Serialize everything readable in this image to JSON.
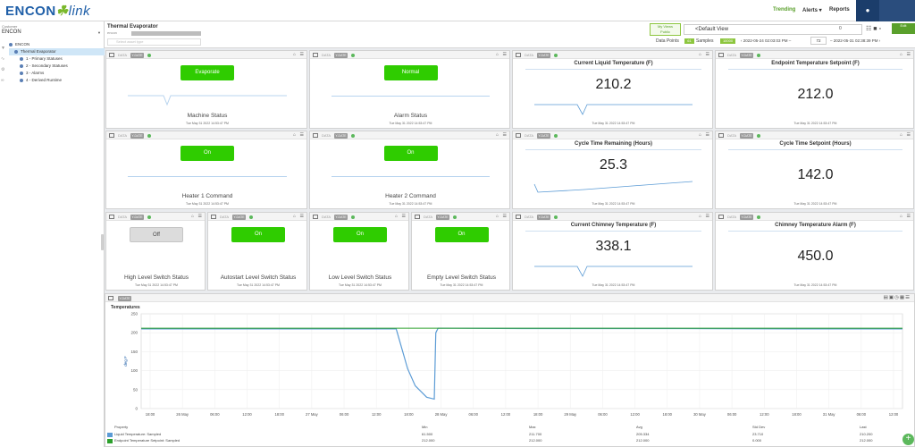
{
  "app": {
    "logo_main": "ENCON",
    "logo_leaf": "☘",
    "logo_link": "link"
  },
  "topnav": {
    "trending": "Trending",
    "alerts": "Alerts ▾",
    "reports": "Reports"
  },
  "sidebar": {
    "customer_label": "Customer",
    "customer_value": "ENCON",
    "tree": [
      {
        "label": "ENCON",
        "indent": 0,
        "selected": false
      },
      {
        "label": "Thermal Evaporator",
        "indent": 1,
        "selected": true
      },
      {
        "label": "1 - Primary Statuses",
        "indent": 2,
        "selected": false
      },
      {
        "label": "2 - Secondary Statuses",
        "indent": 2,
        "selected": false
      },
      {
        "label": "3 - Alarms",
        "indent": 2,
        "selected": false
      },
      {
        "label": "4 - Derived Runtime",
        "indent": 2,
        "selected": false
      }
    ]
  },
  "header": {
    "asset_title": "Thermal Evaporator",
    "asset_sub": "encon",
    "search_placeholder": "Select asset type",
    "my_views": "My Views",
    "my_views_sub": "Public",
    "view_name": "<Default View",
    "view_count": "0",
    "edit_label": "Edit",
    "data_points_label": "Data Points",
    "data_points_value": "61",
    "samples_label": "Samples",
    "samples_value": "10000",
    "range_start": "‹  2022-05-24 02:03:03 PM  –",
    "range_n": "72",
    "range_end": "–  2022-05-31 02:38:39 PM  ›"
  },
  "widget_common": {
    "data_label": "DATA",
    "badge": "Y-DATE"
  },
  "widgets": {
    "machine_status": {
      "button": "Evaporate",
      "label": "Machine Status",
      "time": "Tue May 31 2022 14:53:47 PM"
    },
    "alarm_status": {
      "button": "Normal",
      "label": "Alarm Status",
      "time": "Tue May 31 2022 14:53:47 PM"
    },
    "liquid_temp": {
      "title": "Current Liquid Temperature (F)",
      "value": "210.2",
      "time": "Tue May 31 2022 14:53:47 PM"
    },
    "endpoint_setpoint": {
      "title": "Endpoint Temperature Setpoint (F)",
      "value": "212.0",
      "time": "Tue May 31 2022 14:53:47 PM"
    },
    "heater1": {
      "button": "On",
      "label": "Heater 1 Command",
      "time": "Tue May 31 2022 14:53:47 PM"
    },
    "heater2": {
      "button": "On",
      "label": "Heater 2 Command",
      "time": "Tue May 31 2022 14:53:47 PM"
    },
    "cycle_remaining": {
      "title": "Cycle Time Remaining (Hours)",
      "value": "25.3",
      "time": "Tue May 31 2022 14:53:47 PM"
    },
    "cycle_setpoint": {
      "title": "Cycle Time Setpoint (Hours)",
      "value": "142.0",
      "time": "Tue May 31 2022 14:53:47 PM"
    },
    "high_level": {
      "button": "Off",
      "label": "High Level Switch Status",
      "time": "Tue May 31 2022 14:53:47 PM"
    },
    "autostart_level": {
      "button": "On",
      "label": "Autostart Level Switch Status",
      "time": "Tue May 31 2022 14:53:47 PM"
    },
    "low_level": {
      "button": "On",
      "label": "Low Level Switch Status",
      "time": "Tue May 31 2022 14:53:47 PM"
    },
    "empty_level": {
      "button": "On",
      "label": "Empty Level Switch Status",
      "time": "Tue May 31 2022 14:53:47 PM"
    },
    "chimney_temp": {
      "title": "Current Chimney Temperature (F)",
      "value": "338.1",
      "time": "Tue May 31 2022 14:53:47 PM"
    },
    "chimney_alarm": {
      "title": "Chimney Temperature Alarm (F)",
      "value": "450.0",
      "time": "Tue May 31 2022 14:53:47 PM"
    }
  },
  "chart_data": {
    "type": "line",
    "title": "Temperatures",
    "ylabel": "deg F",
    "xlabel": "",
    "ylim": [
      0,
      250
    ],
    "yticks": [
      0,
      50,
      100,
      150,
      200,
      250
    ],
    "xticks": [
      "18:00",
      "26 May",
      "06:00",
      "12:00",
      "18:00",
      "27 May",
      "06:00",
      "12:00",
      "18:00",
      "28 May",
      "06:00",
      "12:00",
      "18:00",
      "29 May",
      "06:00",
      "12:00",
      "18:00",
      "30 May",
      "06:00",
      "12:00",
      "18:00",
      "31 May",
      "06:00",
      "12:00"
    ],
    "grid": true,
    "series": [
      {
        "name": "Liquid Temperature: Sampled",
        "color": "#5b9bd5",
        "x": [
          0,
          0.2,
          0.3,
          0.335,
          0.34,
          0.345,
          0.35,
          0.36,
          0.375,
          0.385,
          0.387,
          0.39,
          0.5,
          0.7,
          0.9,
          1
        ],
        "values": [
          210,
          210,
          210,
          210,
          175,
          140,
          105,
          60,
          30,
          25,
          200,
          212,
          211,
          211,
          210,
          210
        ]
      },
      {
        "name": "Endpoint Temperature Setpoint: Sampled",
        "color": "#2ca02c",
        "x": [
          0,
          1
        ],
        "values": [
          212,
          212
        ]
      }
    ],
    "legend_columns": [
      "Property",
      "Min",
      "Max",
      "Avg",
      "Std Dev",
      "Last"
    ],
    "legend_rows": [
      {
        "name": "Liquid Temperature: Sampled",
        "min": "61.500",
        "max": "211.700",
        "avg": "205.334",
        "std": "23.710",
        "last": "210.200"
      },
      {
        "name": "Endpoint Temperature Setpoint: Sampled",
        "min": "212.000",
        "max": "212.000",
        "avg": "212.000",
        "std": "0.000",
        "last": "212.000"
      }
    ]
  }
}
